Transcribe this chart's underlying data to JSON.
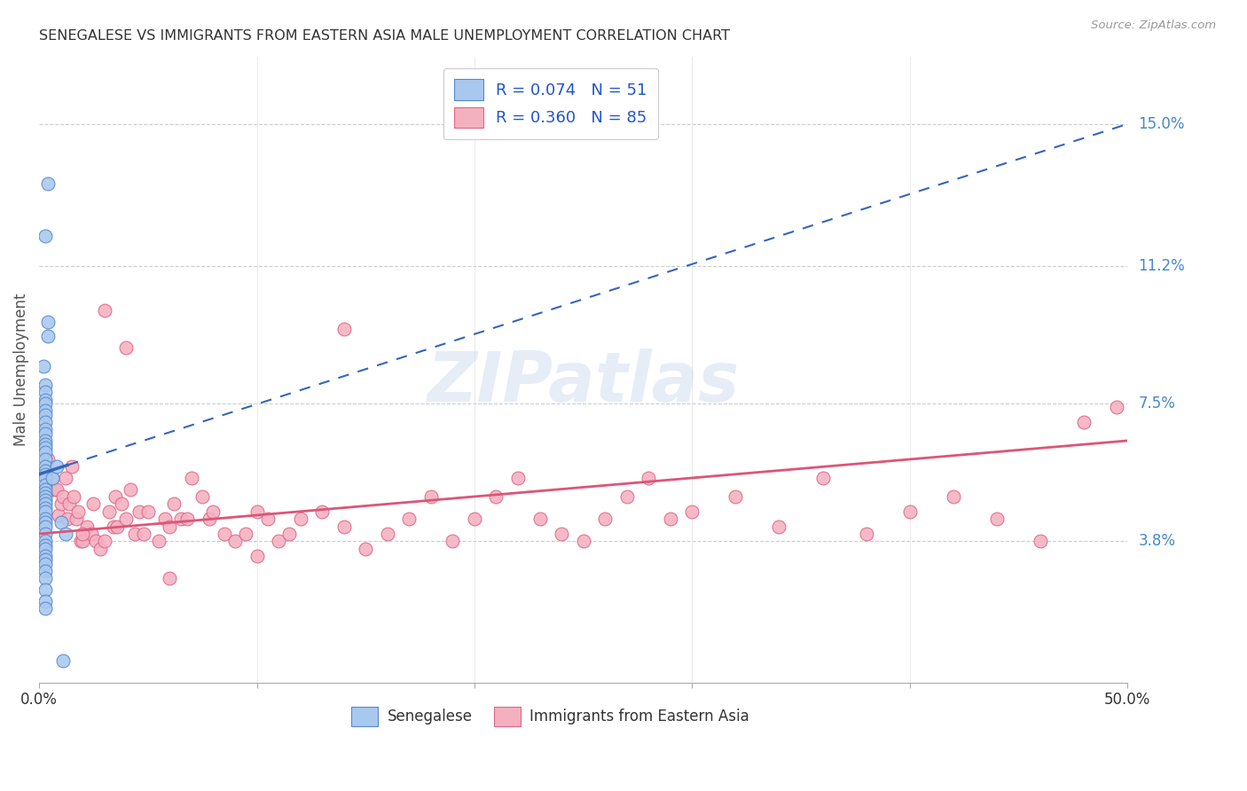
{
  "title": "SENEGALESE VS IMMIGRANTS FROM EASTERN ASIA MALE UNEMPLOYMENT CORRELATION CHART",
  "source": "Source: ZipAtlas.com",
  "ylabel": "Male Unemployment",
  "ytick_labels": [
    "3.8%",
    "7.5%",
    "11.2%",
    "15.0%"
  ],
  "ytick_values": [
    0.038,
    0.075,
    0.112,
    0.15
  ],
  "xmin": 0.0,
  "xmax": 0.5,
  "ymin": 0.0,
  "ymax": 0.168,
  "blue_color": "#a8c8f0",
  "blue_edge_color": "#5588cc",
  "blue_line_color": "#3366bb",
  "pink_color": "#f5b0c0",
  "pink_edge_color": "#dd6688",
  "pink_line_color": "#dd5577",
  "legend_blue_label": "R = 0.074   N = 51",
  "legend_pink_label": "R = 0.360   N = 85",
  "legend_label_senegalese": "Senegalese",
  "legend_label_eastern_asia": "Immigrants from Eastern Asia",
  "watermark": "ZIPatlas",
  "blue_x": [
    0.004,
    0.003,
    0.004,
    0.004,
    0.002,
    0.003,
    0.003,
    0.003,
    0.003,
    0.003,
    0.003,
    0.003,
    0.003,
    0.003,
    0.003,
    0.003,
    0.003,
    0.003,
    0.003,
    0.003,
    0.003,
    0.003,
    0.003,
    0.003,
    0.003,
    0.003,
    0.003,
    0.003,
    0.003,
    0.003,
    0.003,
    0.003,
    0.003,
    0.003,
    0.003,
    0.003,
    0.003,
    0.003,
    0.003,
    0.003,
    0.003,
    0.003,
    0.003,
    0.003,
    0.003,
    0.003,
    0.006,
    0.008,
    0.01,
    0.012,
    0.011
  ],
  "blue_y": [
    0.134,
    0.12,
    0.097,
    0.093,
    0.085,
    0.08,
    0.078,
    0.076,
    0.075,
    0.073,
    0.072,
    0.07,
    0.068,
    0.067,
    0.065,
    0.064,
    0.063,
    0.062,
    0.06,
    0.058,
    0.057,
    0.056,
    0.055,
    0.053,
    0.052,
    0.051,
    0.05,
    0.049,
    0.048,
    0.047,
    0.046,
    0.044,
    0.043,
    0.042,
    0.04,
    0.038,
    0.037,
    0.036,
    0.034,
    0.033,
    0.032,
    0.03,
    0.028,
    0.025,
    0.022,
    0.02,
    0.055,
    0.058,
    0.043,
    0.04,
    0.006
  ],
  "pink_x": [
    0.004,
    0.006,
    0.007,
    0.008,
    0.009,
    0.01,
    0.011,
    0.012,
    0.013,
    0.014,
    0.015,
    0.016,
    0.017,
    0.018,
    0.019,
    0.02,
    0.022,
    0.024,
    0.025,
    0.026,
    0.028,
    0.03,
    0.032,
    0.034,
    0.035,
    0.036,
    0.038,
    0.04,
    0.042,
    0.044,
    0.046,
    0.048,
    0.05,
    0.055,
    0.058,
    0.06,
    0.062,
    0.065,
    0.068,
    0.07,
    0.075,
    0.078,
    0.08,
    0.085,
    0.09,
    0.095,
    0.1,
    0.105,
    0.11,
    0.115,
    0.12,
    0.13,
    0.14,
    0.15,
    0.16,
    0.17,
    0.18,
    0.19,
    0.2,
    0.21,
    0.22,
    0.23,
    0.24,
    0.25,
    0.26,
    0.27,
    0.28,
    0.29,
    0.3,
    0.32,
    0.34,
    0.36,
    0.38,
    0.4,
    0.42,
    0.44,
    0.46,
    0.48,
    0.495,
    0.02,
    0.03,
    0.04,
    0.06,
    0.1,
    0.14
  ],
  "pink_y": [
    0.06,
    0.055,
    0.052,
    0.052,
    0.045,
    0.048,
    0.05,
    0.055,
    0.044,
    0.048,
    0.058,
    0.05,
    0.044,
    0.046,
    0.038,
    0.038,
    0.042,
    0.04,
    0.048,
    0.038,
    0.036,
    0.038,
    0.046,
    0.042,
    0.05,
    0.042,
    0.048,
    0.044,
    0.052,
    0.04,
    0.046,
    0.04,
    0.046,
    0.038,
    0.044,
    0.042,
    0.048,
    0.044,
    0.044,
    0.055,
    0.05,
    0.044,
    0.046,
    0.04,
    0.038,
    0.04,
    0.046,
    0.044,
    0.038,
    0.04,
    0.044,
    0.046,
    0.042,
    0.036,
    0.04,
    0.044,
    0.05,
    0.038,
    0.044,
    0.05,
    0.055,
    0.044,
    0.04,
    0.038,
    0.044,
    0.05,
    0.055,
    0.044,
    0.046,
    0.05,
    0.042,
    0.055,
    0.04,
    0.046,
    0.05,
    0.044,
    0.038,
    0.07,
    0.074,
    0.04,
    0.1,
    0.09,
    0.028,
    0.034,
    0.095
  ]
}
